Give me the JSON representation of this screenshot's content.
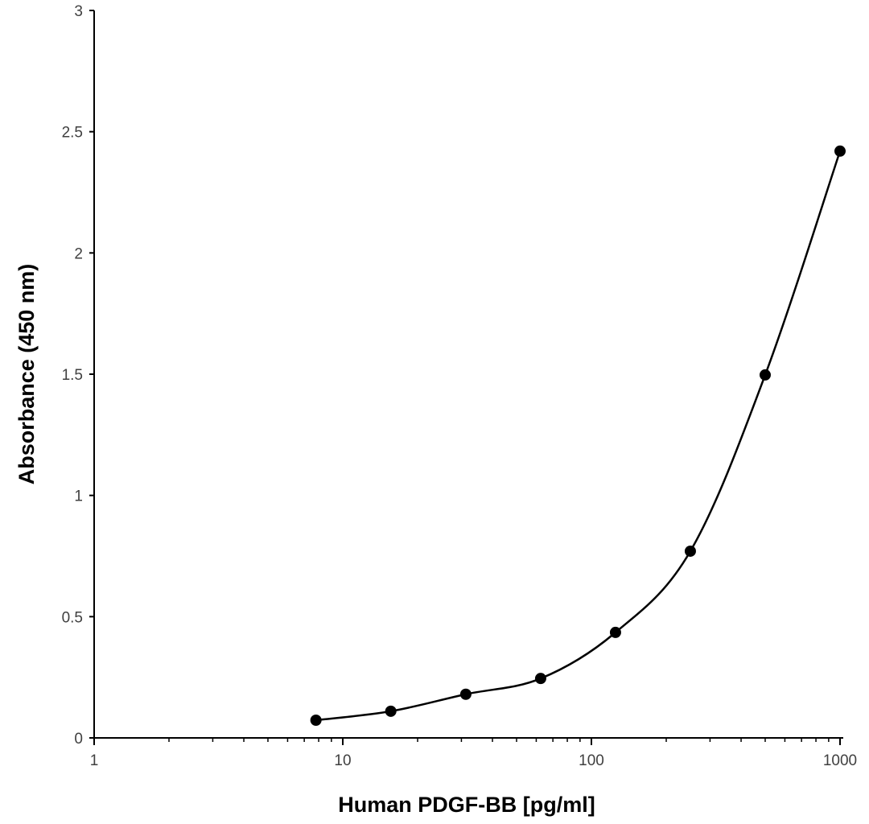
{
  "chart_data": {
    "type": "line",
    "title": "",
    "xlabel": "Human PDGF-BB [pg/ml]",
    "ylabel": "Absorbance (450 nm)",
    "xscale": "log",
    "xlim": [
      1,
      1000
    ],
    "ylim": [
      0,
      3
    ],
    "xticks": [
      1,
      10,
      100,
      1000
    ],
    "xtick_labels": [
      "1",
      "10",
      "100",
      "1000"
    ],
    "yticks": [
      0,
      0.5,
      1,
      1.5,
      2,
      2.5,
      3
    ],
    "ytick_labels": [
      "0",
      "0.5",
      "1",
      "1.5",
      "2",
      "2.5",
      "3"
    ],
    "grid": false,
    "smoothed": true,
    "marker": "circle",
    "color": "#000000",
    "series": [
      {
        "x": [
          7.8,
          15.6,
          31.25,
          62.5,
          125,
          250,
          500,
          1000
        ],
        "y": [
          0.073,
          0.11,
          0.18,
          0.245,
          0.435,
          0.77,
          1.497,
          2.42
        ]
      }
    ]
  }
}
